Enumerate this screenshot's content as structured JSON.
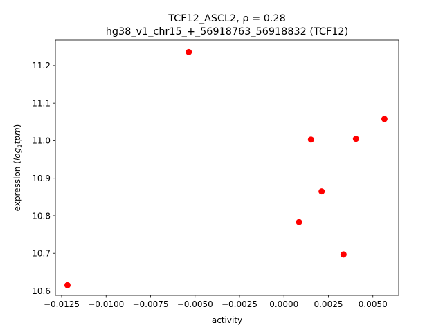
{
  "chart_data": {
    "type": "scatter",
    "title": "TCF12_ASCL2, ρ = 0.28",
    "subtitle": "hg38_v1_chr15_+_56918763_56918832 (TCF12)",
    "xlabel": "activity",
    "ylabel_prefix": "expression (",
    "ylabel_math": "log",
    "ylabel_sub": "2",
    "ylabel_math2": "tpm",
    "ylabel_suffix": ")",
    "xlim": [
      -0.01285,
      0.00645
    ],
    "ylim": [
      10.588,
      11.268
    ],
    "xticks": [
      -0.0125,
      -0.01,
      -0.0075,
      -0.005,
      -0.0025,
      0.0,
      0.0025,
      0.005
    ],
    "xtick_labels": [
      "−0.0125",
      "−0.0100",
      "−0.0075",
      "−0.0050",
      "−0.0025",
      "0.0000",
      "0.0025",
      "0.0050"
    ],
    "yticks": [
      10.6,
      10.7,
      10.8,
      10.9,
      11.0,
      11.1,
      11.2
    ],
    "ytick_labels": [
      "10.6",
      "10.7",
      "10.8",
      "10.9",
      "11.0",
      "11.1",
      "11.2"
    ],
    "grid": false,
    "marker_color": "#ff0000",
    "points": [
      {
        "x": -0.01217,
        "y": 10.615
      },
      {
        "x": -0.00535,
        "y": 11.236
      },
      {
        "x": 0.00085,
        "y": 10.783
      },
      {
        "x": 0.00152,
        "y": 11.003
      },
      {
        "x": 0.00212,
        "y": 10.865
      },
      {
        "x": 0.00335,
        "y": 10.697
      },
      {
        "x": 0.00405,
        "y": 11.005
      },
      {
        "x": 0.00565,
        "y": 11.058
      }
    ]
  }
}
